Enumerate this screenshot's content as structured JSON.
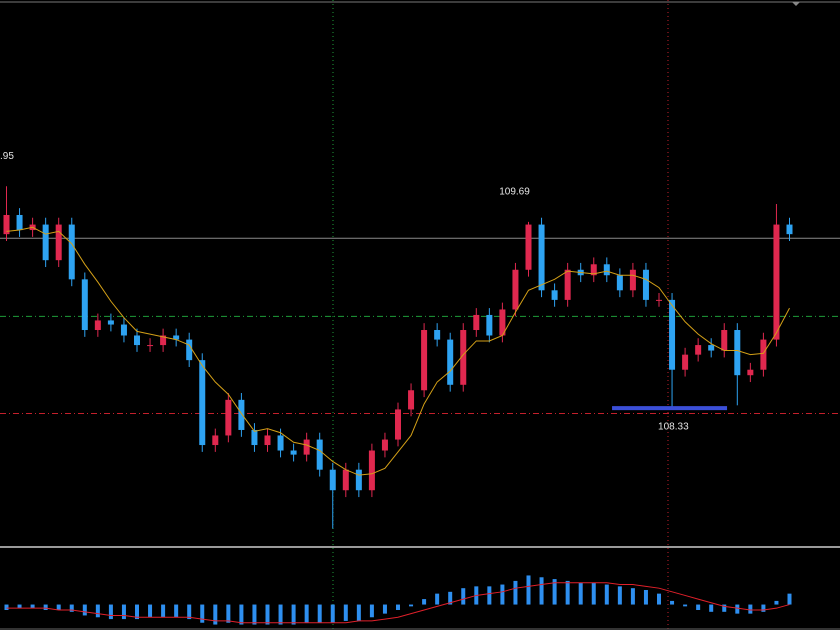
{
  "chart_data": [
    {
      "type": "candlestick",
      "ylim": [
        107.33,
        111.31
      ],
      "up_color": "#e0284f",
      "down_color": "#2ea3f2",
      "open": [
        109.6,
        109.74,
        109.63,
        109.67,
        109.41,
        109.67,
        109.27,
        108.9,
        108.97,
        108.94,
        108.86,
        108.79,
        108.79,
        108.86,
        108.83,
        108.68,
        108.06,
        108.13,
        108.39,
        108.17,
        108.06,
        108.13,
        108.02,
        107.99,
        108.1,
        107.88,
        107.73,
        107.88,
        107.73,
        108.02,
        108.1,
        108.32,
        108.46,
        108.9,
        108.83,
        108.5,
        108.9,
        109.01,
        108.86,
        109.05,
        109.34,
        109.67,
        109.19,
        109.12,
        109.34,
        109.3,
        109.38,
        109.3,
        109.19,
        109.34,
        109.12,
        109.12,
        108.61,
        108.72,
        108.79,
        108.75,
        108.9,
        108.57,
        108.61,
        108.83,
        109.67
      ],
      "high": [
        109.95,
        109.79,
        109.72,
        109.72,
        109.72,
        109.72,
        109.32,
        109.02,
        109.02,
        108.99,
        108.91,
        108.84,
        108.91,
        108.91,
        108.88,
        108.73,
        108.18,
        108.44,
        108.44,
        108.22,
        108.18,
        108.18,
        108.07,
        108.15,
        108.15,
        107.93,
        107.93,
        107.93,
        108.07,
        108.15,
        108.37,
        108.51,
        108.95,
        108.95,
        108.88,
        108.95,
        109.06,
        109.06,
        109.1,
        109.39,
        109.69,
        109.72,
        109.24,
        109.39,
        109.39,
        109.43,
        109.43,
        109.35,
        109.39,
        109.39,
        109.17,
        109.17,
        108.77,
        108.84,
        108.84,
        108.95,
        108.95,
        108.66,
        108.88,
        109.82,
        109.72
      ],
      "low": [
        109.55,
        109.58,
        109.58,
        109.36,
        109.36,
        109.22,
        108.85,
        108.85,
        108.89,
        108.81,
        108.74,
        108.74,
        108.74,
        108.78,
        108.63,
        108.01,
        108.01,
        108.08,
        108.12,
        108.01,
        108.01,
        107.97,
        107.94,
        107.94,
        107.83,
        107.45,
        107.68,
        107.68,
        107.68,
        107.97,
        108.05,
        108.27,
        108.41,
        108.78,
        108.45,
        108.45,
        108.85,
        108.81,
        108.81,
        109.0,
        109.29,
        109.14,
        109.07,
        109.07,
        109.25,
        109.25,
        109.25,
        109.14,
        109.14,
        109.07,
        109.07,
        108.33,
        108.56,
        108.67,
        108.7,
        108.7,
        108.35,
        108.52,
        108.56,
        108.78,
        109.55
      ],
      "close": [
        109.74,
        109.63,
        109.67,
        109.41,
        109.67,
        109.27,
        108.9,
        108.97,
        108.94,
        108.86,
        108.79,
        108.79,
        108.86,
        108.83,
        108.68,
        108.06,
        108.13,
        108.39,
        108.17,
        108.06,
        108.13,
        108.02,
        107.99,
        108.1,
        107.88,
        107.73,
        107.88,
        107.73,
        108.02,
        108.1,
        108.32,
        108.46,
        108.9,
        108.83,
        108.5,
        108.9,
        109.01,
        108.86,
        109.05,
        109.34,
        109.67,
        109.19,
        109.12,
        109.34,
        109.3,
        109.38,
        109.3,
        109.19,
        109.34,
        109.12,
        109.12,
        108.61,
        108.72,
        108.79,
        108.75,
        108.9,
        108.57,
        108.61,
        108.83,
        109.67,
        109.6
      ],
      "ma": {
        "color": "#d4a017",
        "values": [
          109.62,
          109.63,
          109.65,
          109.6,
          109.62,
          109.53,
          109.38,
          109.25,
          109.11,
          108.99,
          108.89,
          108.87,
          108.85,
          108.83,
          108.79,
          108.64,
          108.52,
          108.43,
          108.29,
          108.16,
          108.18,
          108.15,
          108.08,
          108.06,
          108.02,
          107.94,
          107.88,
          107.84,
          107.85,
          107.89,
          108.01,
          108.13,
          108.36,
          108.52,
          108.6,
          108.72,
          108.82,
          108.82,
          108.86,
          109.03,
          109.19,
          109.23,
          109.27,
          109.33,
          109.32,
          109.31,
          109.33,
          109.3,
          109.3,
          109.27,
          109.21,
          109.08,
          108.96,
          108.87,
          108.8,
          108.75,
          108.75,
          108.72,
          108.73,
          108.88,
          109.06
        ]
      },
      "levels": [
        {
          "value": 109.57,
          "color": "#8a8a8a",
          "dashed": false
        },
        {
          "value": 109.0,
          "color": "#1e9e3a",
          "dashed": true
        },
        {
          "value": 108.29,
          "color": "#c4202c",
          "dashed": true
        }
      ],
      "annotations": [
        {
          "label": ".95",
          "value": 109.95
        },
        {
          "label": "109.69",
          "value": 109.69
        },
        {
          "label": "108.33",
          "value": 108.33
        }
      ]
    },
    {
      "type": "macd",
      "ylim": [
        -0.14,
        0.3
      ],
      "color": "#2e8ff0",
      "values": [
        -0.03,
        -0.02,
        -0.02,
        -0.03,
        -0.03,
        -0.04,
        -0.06,
        -0.07,
        -0.08,
        -0.08,
        -0.08,
        -0.07,
        -0.07,
        -0.07,
        -0.08,
        -0.1,
        -0.11,
        -0.1,
        -0.11,
        -0.11,
        -0.11,
        -0.11,
        -0.11,
        -0.1,
        -0.1,
        -0.1,
        -0.09,
        -0.09,
        -0.07,
        -0.05,
        -0.03,
        -0.01,
        0.03,
        0.06,
        0.07,
        0.09,
        0.1,
        0.1,
        0.11,
        0.13,
        0.16,
        0.15,
        0.14,
        0.13,
        0.12,
        0.12,
        0.11,
        0.1,
        0.09,
        0.08,
        0.06,
        0.02,
        -0.01,
        -0.03,
        -0.04,
        -0.04,
        -0.05,
        -0.05,
        -0.04,
        0.02,
        0.06
      ],
      "signal": {
        "color": "#e0202a",
        "values": [
          -0.02,
          -0.02,
          -0.02,
          -0.02,
          -0.03,
          -0.03,
          -0.04,
          -0.05,
          -0.06,
          -0.06,
          -0.07,
          -0.07,
          -0.07,
          -0.07,
          -0.07,
          -0.08,
          -0.09,
          -0.09,
          -0.1,
          -0.1,
          -0.1,
          -0.1,
          -0.1,
          -0.1,
          -0.1,
          -0.1,
          -0.1,
          -0.09,
          -0.09,
          -0.08,
          -0.07,
          -0.05,
          -0.03,
          -0.01,
          0.01,
          0.03,
          0.05,
          0.06,
          0.07,
          0.09,
          0.1,
          0.11,
          0.12,
          0.12,
          0.12,
          0.12,
          0.12,
          0.11,
          0.11,
          0.1,
          0.09,
          0.07,
          0.05,
          0.03,
          0.01,
          -0.01,
          -0.02,
          -0.03,
          -0.03,
          -0.02,
          0.0
        ]
      }
    }
  ]
}
